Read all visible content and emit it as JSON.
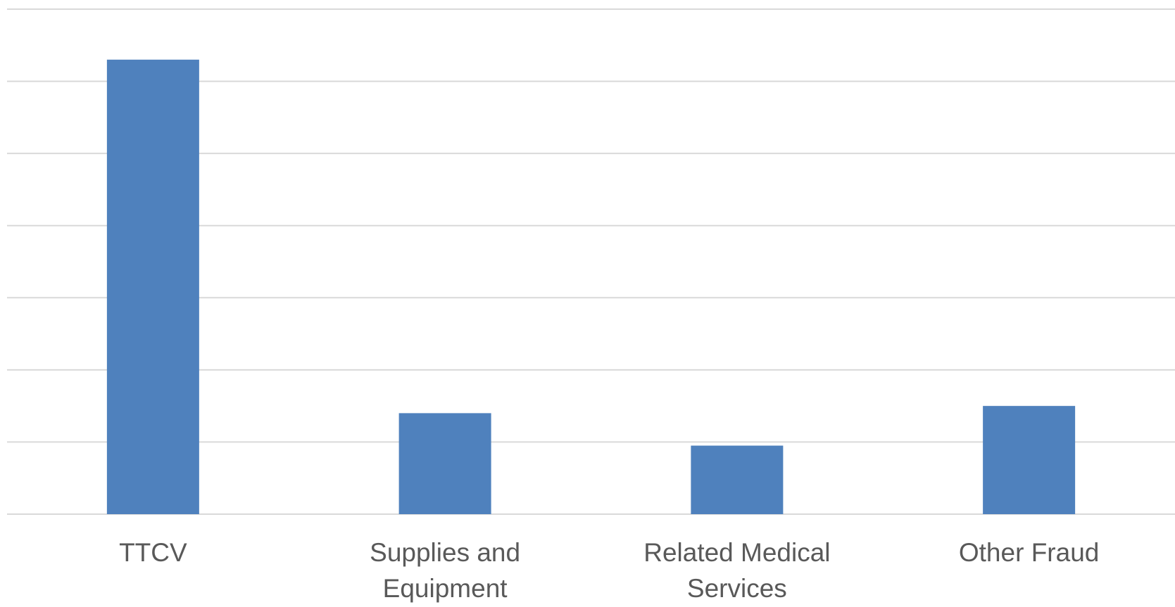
{
  "chart_data": {
    "type": "bar",
    "title": "",
    "xlabel": "",
    "ylabel": "",
    "categories": [
      [
        "TTCV"
      ],
      [
        "Supplies and",
        "Equipment"
      ],
      [
        "Related Medical",
        "Services"
      ],
      [
        "Other Fraud"
      ]
    ],
    "values": [
      6.3,
      1.4,
      0.95,
      1.5
    ],
    "ylim": [
      0,
      7
    ],
    "grid": true,
    "legend": "none",
    "bar_color": "#4F81BD",
    "grid_color": "#D9D9D9",
    "label_color": "#595959"
  }
}
